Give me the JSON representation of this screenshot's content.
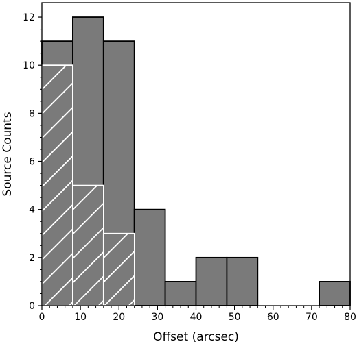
{
  "chart_data": {
    "type": "bar",
    "subtype": "histogram",
    "title": "",
    "xlabel": "Offset (arcsec)",
    "ylabel": "Source Counts",
    "xlim": [
      0,
      80
    ],
    "ylim": [
      0,
      12.6
    ],
    "xticks": [
      0,
      10,
      20,
      30,
      40,
      50,
      60,
      70,
      80
    ],
    "yticks": [
      0,
      2,
      4,
      6,
      8,
      10,
      12
    ],
    "bin_edges": [
      0,
      8,
      16,
      24,
      32,
      40,
      48,
      56,
      64,
      72,
      80
    ],
    "grid": false,
    "legend": "none",
    "series": [
      {
        "style": "solid",
        "color": "#7a7a7a",
        "edge_color": "#000000",
        "values": [
          11,
          12,
          11,
          4,
          1,
          2,
          2,
          0,
          0,
          1
        ]
      },
      {
        "style": "hatched",
        "hatch_color": "#ffffff",
        "values": [
          10,
          5,
          3,
          0,
          0,
          0,
          0,
          0,
          0,
          0
        ]
      }
    ]
  }
}
